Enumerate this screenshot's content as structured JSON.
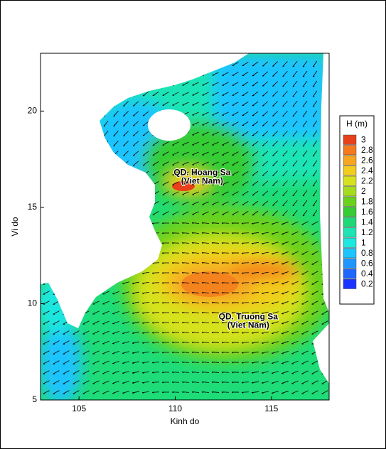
{
  "chart_data": {
    "type": "contour",
    "x_label": "Kinh do",
    "y_label": "Vi do",
    "xlim": [
      103,
      118
    ],
    "ylim": [
      5,
      23
    ],
    "xticks": [
      105,
      110,
      115
    ],
    "yticks": [
      5,
      10,
      15,
      20
    ],
    "annotations": [
      {
        "lines": [
          "QD. Hoang Sa",
          "(Viet Nam)"
        ],
        "x": 111.4,
        "y": 16.8
      },
      {
        "lines": [
          "QD. Truong Sa",
          "(Viet Nam)"
        ],
        "x": 113.8,
        "y": 9.3
      }
    ],
    "colorbar": {
      "title": "H (m)",
      "levels": [
        3,
        2.8,
        2.6,
        2.4,
        2.2,
        2,
        1.8,
        1.6,
        1.4,
        1.2,
        1,
        0.8,
        0.6,
        0.4,
        0.2
      ],
      "colors": [
        "#e8401a",
        "#f47a1e",
        "#f6a620",
        "#f2cc1e",
        "#d6e21e",
        "#a6dc1e",
        "#6ad21e",
        "#36cc34",
        "#1ed878",
        "#1ee4b4",
        "#1ee6e0",
        "#1ec4ff",
        "#1e96ff",
        "#1e66ff",
        "#1a34ff"
      ]
    }
  }
}
